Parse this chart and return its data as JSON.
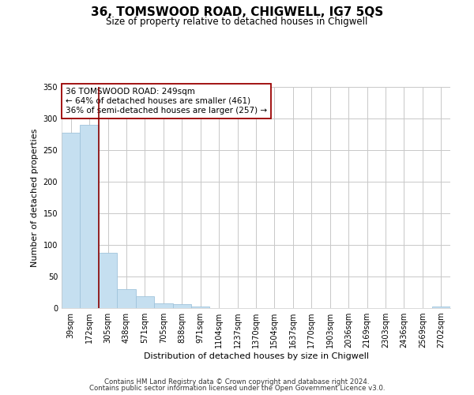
{
  "title": "36, TOMSWOOD ROAD, CHIGWELL, IG7 5QS",
  "subtitle": "Size of property relative to detached houses in Chigwell",
  "xlabel": "Distribution of detached houses by size in Chigwell",
  "ylabel": "Number of detached properties",
  "bar_labels": [
    "39sqm",
    "172sqm",
    "305sqm",
    "438sqm",
    "571sqm",
    "705sqm",
    "838sqm",
    "971sqm",
    "1104sqm",
    "1237sqm",
    "1370sqm",
    "1504sqm",
    "1637sqm",
    "1770sqm",
    "1903sqm",
    "2036sqm",
    "2169sqm",
    "2303sqm",
    "2436sqm",
    "2569sqm",
    "2702sqm"
  ],
  "bar_values": [
    278,
    290,
    88,
    30,
    19,
    8,
    6,
    2,
    0,
    0,
    0,
    0,
    0,
    0,
    0,
    0,
    0,
    0,
    0,
    0,
    2
  ],
  "bar_color": "#c5dff0",
  "bar_edge_color": "#a0c4dc",
  "vline_x": 1.5,
  "vline_color": "#8b0000",
  "ylim": [
    0,
    350
  ],
  "yticks": [
    0,
    50,
    100,
    150,
    200,
    250,
    300,
    350
  ],
  "annotation_title": "36 TOMSWOOD ROAD: 249sqm",
  "annotation_line1": "← 64% of detached houses are smaller (461)",
  "annotation_line2": "36% of semi-detached houses are larger (257) →",
  "footer1": "Contains HM Land Registry data © Crown copyright and database right 2024.",
  "footer2": "Contains public sector information licensed under the Open Government Licence v3.0.",
  "background_color": "#ffffff",
  "grid_color": "#c8c8c8"
}
